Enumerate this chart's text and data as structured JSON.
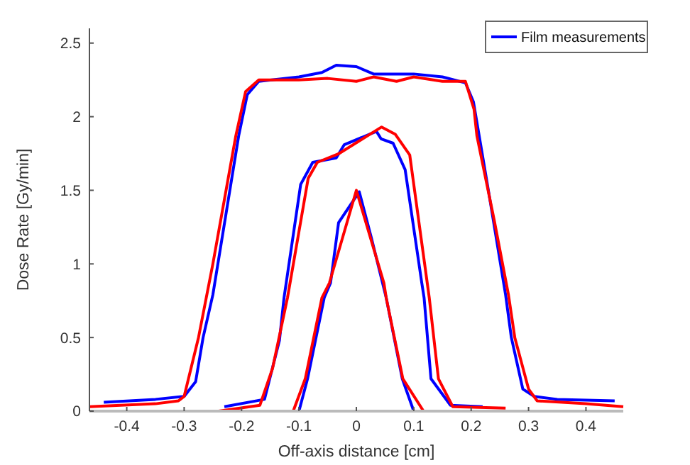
{
  "chart_data": {
    "type": "line",
    "xlabel": "Off-axis distance [cm]",
    "ylabel": "Dose Rate [Gy/min]",
    "xlim": [
      -0.465,
      0.465
    ],
    "ylim": [
      0,
      2.6
    ],
    "xticks": [
      -0.4,
      -0.3,
      -0.2,
      -0.1,
      0,
      0.1,
      0.2,
      0.3,
      0.4
    ],
    "yticks": [
      0,
      0.5,
      1,
      1.5,
      2,
      2.5
    ],
    "grid": false,
    "legend": "top right",
    "marker": "none",
    "line_style": "solid",
    "series": [
      {
        "name": "Film measurements",
        "color": "#0000ff",
        "x": [
          -0.44,
          -0.35,
          -0.3,
          -0.28,
          -0.267,
          -0.25,
          -0.205,
          -0.19,
          -0.17,
          -0.1,
          -0.06,
          -0.035,
          0,
          0.03,
          0.1,
          0.15,
          0.19,
          0.204,
          0.23,
          0.26,
          0.27,
          0.29,
          0.31,
          0.35,
          0.45
        ],
        "values": [
          0.06,
          0.08,
          0.1,
          0.2,
          0.5,
          0.79,
          1.87,
          2.15,
          2.24,
          2.27,
          2.3,
          2.35,
          2.34,
          2.29,
          2.29,
          2.27,
          2.23,
          2.1,
          1.5,
          0.79,
          0.5,
          0.15,
          0.1,
          0.08,
          0.07
        ]
      },
      {
        "color": "#ff0000",
        "x": [
          -0.465,
          -0.35,
          -0.31,
          -0.3,
          -0.275,
          -0.25,
          -0.21,
          -0.193,
          -0.17,
          -0.1,
          -0.05,
          0,
          0.03,
          0.07,
          0.1,
          0.15,
          0.19,
          0.205,
          0.21,
          0.24,
          0.265,
          0.276,
          0.3,
          0.315,
          0.4,
          0.465
        ],
        "values": [
          0.03,
          0.05,
          0.07,
          0.1,
          0.5,
          1.0,
          1.87,
          2.17,
          2.25,
          2.25,
          2.26,
          2.24,
          2.27,
          2.24,
          2.27,
          2.24,
          2.24,
          2.05,
          1.87,
          1.3,
          0.79,
          0.5,
          0.15,
          0.07,
          0.05,
          0.03
        ]
      },
      {
        "color": "#0000ff",
        "x": [
          -0.23,
          -0.16,
          -0.134,
          -0.126,
          -0.097,
          -0.076,
          -0.035,
          -0.021,
          0.035,
          0.043,
          0.064,
          0.085,
          0.114,
          0.118,
          0.13,
          0.164,
          0.22
        ],
        "values": [
          0.03,
          0.08,
          0.48,
          0.77,
          1.54,
          1.69,
          1.72,
          1.81,
          1.9,
          1.85,
          1.82,
          1.64,
          0.87,
          0.77,
          0.22,
          0.04,
          0.03
        ]
      },
      {
        "color": "#ff0000",
        "x": [
          -0.24,
          -0.168,
          -0.146,
          -0.12,
          -0.084,
          -0.068,
          -0.03,
          0.044,
          0.068,
          0.093,
          0.127,
          0.143,
          0.168,
          0.26
        ],
        "values": [
          0,
          0.04,
          0.29,
          0.77,
          1.58,
          1.69,
          1.75,
          1.93,
          1.88,
          1.74,
          0.77,
          0.22,
          0.03,
          0.02
        ]
      },
      {
        "color": "#0000ff",
        "x": [
          -0.1,
          -0.085,
          -0.056,
          -0.045,
          -0.031,
          0.005,
          0.026,
          0.052,
          0.08,
          0.1
        ],
        "values": [
          0,
          0.22,
          0.77,
          0.87,
          1.28,
          1.49,
          1.18,
          0.77,
          0.22,
          0
        ]
      },
      {
        "color": "#ff0000",
        "x": [
          -0.11,
          -0.089,
          -0.06,
          -0.047,
          0,
          0.048,
          0.052,
          0.081,
          0.117
        ],
        "values": [
          0,
          0.22,
          0.77,
          0.87,
          1.5,
          0.87,
          0.77,
          0.22,
          0
        ]
      }
    ]
  }
}
